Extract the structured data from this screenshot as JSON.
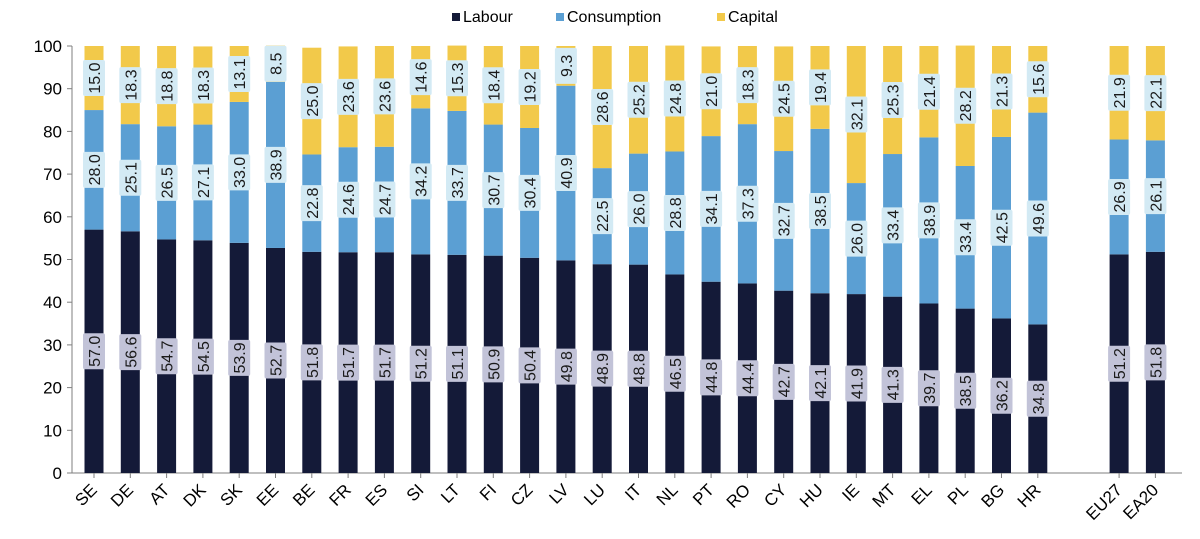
{
  "chart_data": {
    "type": "bar",
    "stacked": true,
    "percent_stacked": true,
    "categories": [
      "SE",
      "DE",
      "AT",
      "DK",
      "SK",
      "EE",
      "BE",
      "FR",
      "ES",
      "SI",
      "LT",
      "FI",
      "CZ",
      "LV",
      "LU",
      "IT",
      "NL",
      "PT",
      "RO",
      "CY",
      "HU",
      "IE",
      "MT",
      "EL",
      "PL",
      "BG",
      "HR",
      "EU27",
      "EA20"
    ],
    "series": [
      {
        "name": "Labour",
        "color": "#141a38",
        "label_bg": "#c2c3d8",
        "values": [
          57.0,
          56.6,
          54.7,
          54.5,
          53.9,
          52.7,
          51.8,
          51.7,
          51.7,
          51.2,
          51.1,
          50.9,
          50.4,
          49.8,
          48.9,
          48.8,
          46.5,
          44.8,
          44.4,
          42.7,
          42.1,
          41.9,
          41.3,
          39.7,
          38.5,
          36.2,
          34.8,
          51.2,
          51.8
        ]
      },
      {
        "name": "Consumption",
        "color": "#5b9fd3",
        "label_bg": "#d3eaf4",
        "values": [
          28.0,
          25.1,
          26.5,
          27.1,
          33.0,
          38.9,
          22.8,
          24.6,
          24.7,
          34.2,
          33.7,
          30.7,
          30.4,
          40.9,
          22.5,
          26.0,
          28.8,
          34.1,
          37.3,
          32.7,
          38.5,
          26.0,
          33.4,
          38.9,
          33.4,
          42.5,
          49.6,
          26.9,
          26.1
        ]
      },
      {
        "name": "Capital",
        "color": "#f2c94a",
        "label_bg": "#d3eaf4",
        "values": [
          15.0,
          18.3,
          18.8,
          18.3,
          13.1,
          8.5,
          25.0,
          23.6,
          23.6,
          14.6,
          15.3,
          18.4,
          19.2,
          9.3,
          28.6,
          25.2,
          24.8,
          21.0,
          18.3,
          24.5,
          19.4,
          32.1,
          25.3,
          21.4,
          28.2,
          21.3,
          15.6,
          21.9,
          22.1
        ]
      }
    ],
    "ylim": [
      0,
      100
    ],
    "yticks": [
      0,
      10,
      20,
      30,
      40,
      50,
      60,
      70,
      80,
      90,
      100
    ],
    "legend_position": "top",
    "grid": false,
    "group_gap_before": "EU27",
    "labels": {
      "labour": [
        "57.0",
        "56.6",
        "54.7",
        "54.5",
        "53.9",
        "52.7",
        "51.8",
        "51.7",
        "51.7",
        "51.2",
        "51.1",
        "50.9",
        "50.4",
        "49.8",
        "48.9",
        "48.8",
        "46.5",
        "44.8",
        "44.4",
        "42.7",
        "42.1",
        "41.9",
        "41.3",
        "39.7",
        "38.5",
        "36.2",
        "34.8",
        "51.2",
        "51.8"
      ],
      "consumption": [
        "28.0",
        "25.1",
        "26.5",
        "27.1",
        "33.0",
        "38.9",
        "22.8",
        "24.6",
        "24.7",
        "34.2",
        "33.7",
        "30.7",
        "30.4",
        "40.9",
        "22.5",
        "26.0",
        "28.8",
        "34.1",
        "37.3",
        "32.7",
        "38.5",
        "26.0",
        "33.4",
        "38.9",
        "33.4",
        "42.5",
        "49.6",
        "26.9",
        "26.1"
      ],
      "capital": [
        "15.0",
        "18.3",
        "18.8",
        "18.3",
        "13.1",
        "8.5",
        "25.0",
        "23.6",
        "23.6",
        "14.6",
        "15.3",
        "18.4",
        "19.2",
        "9.3",
        "28.6",
        "25.2",
        "24.8",
        "21.0",
        "18.3",
        "24.5",
        "19.4",
        "32.1",
        "25.3",
        "21.4",
        "28.2",
        "21.3",
        "15.6",
        "21.9",
        "22.1"
      ]
    }
  }
}
